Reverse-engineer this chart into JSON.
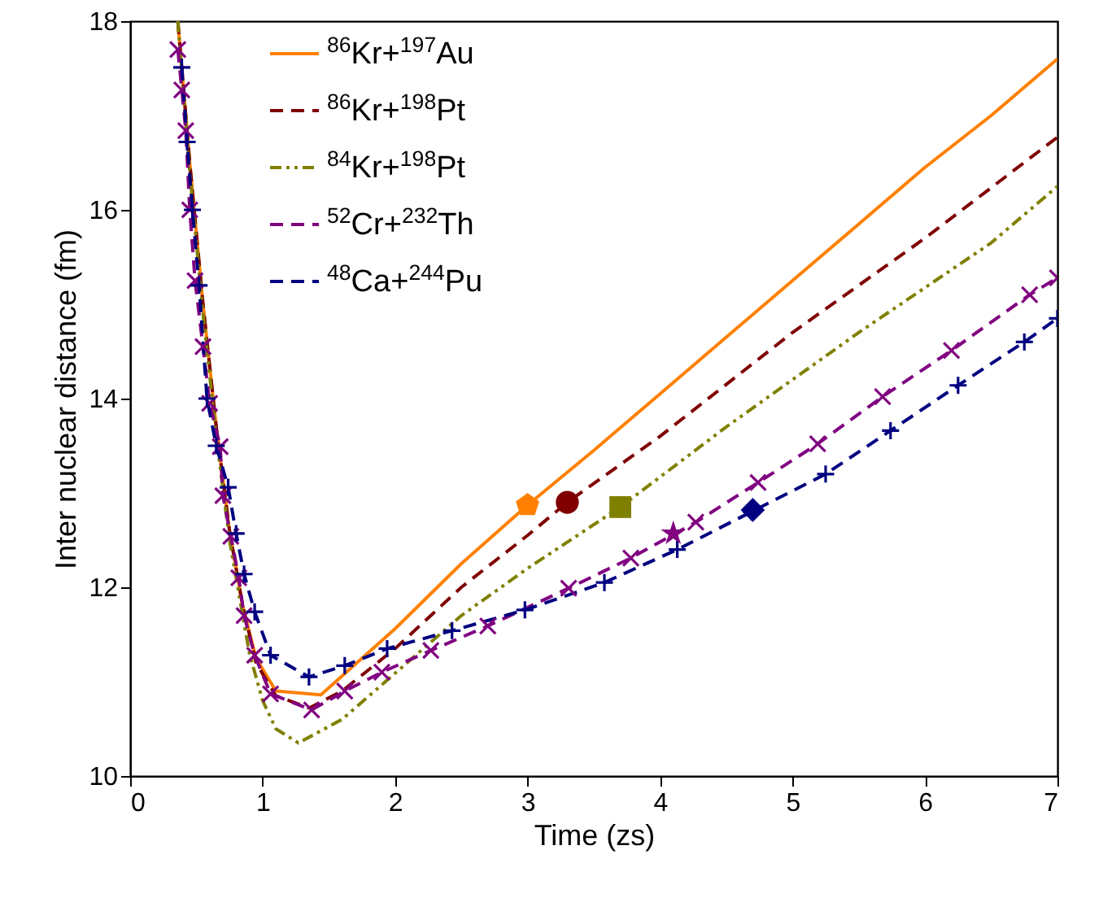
{
  "chart_data": {
    "type": "line",
    "xlabel": "Time (zs)",
    "ylabel": "Inter nuclear distance (fm)",
    "xlim": [
      0,
      7
    ],
    "xticks": [
      0,
      1,
      2,
      3,
      4,
      5,
      6,
      7
    ],
    "ylim": [
      10,
      18
    ],
    "yticks": [
      10,
      12,
      14,
      16,
      18
    ],
    "grid": false,
    "legend": "top",
    "series": [
      {
        "name": "$^{86}$Kr+$^{197}$Au",
        "color": "#ff8000",
        "line_style": "solid",
        "marker": "none",
        "x": [
          0.36,
          0.45,
          0.55,
          0.65,
          0.75,
          0.85,
          0.95,
          1.1,
          1.44,
          2,
          2.5,
          3,
          3.5,
          4,
          4.5,
          5,
          5.5,
          6,
          6.5,
          7
        ],
        "values": [
          18,
          16.5,
          15,
          13.7,
          12.6,
          11.8,
          11.25,
          10.9,
          10.86,
          11.56,
          12.25,
          12.87,
          13.45,
          14.05,
          14.65,
          15.25,
          15.85,
          16.45,
          17.0,
          17.6
        ]
      },
      {
        "name": "$^{86}$Kr+$^{198}$Pt",
        "color": "#800000",
        "line_style": "dashed",
        "marker": "none",
        "x": [
          0.36,
          0.45,
          0.55,
          0.65,
          0.75,
          0.85,
          0.95,
          1.1,
          1.35,
          1.6,
          2,
          2.5,
          3,
          3.3,
          4,
          5,
          6,
          7
        ],
        "values": [
          18,
          16.5,
          15,
          13.7,
          12.6,
          11.8,
          11.2,
          10.85,
          10.72,
          10.9,
          11.35,
          12.0,
          12.55,
          12.9,
          13.6,
          14.7,
          15.7,
          16.77
        ]
      },
      {
        "name": "$^{84}$Kr+$^{198}$Pt",
        "color": "#808000",
        "line_style": "dashdot",
        "marker": "none",
        "x": [
          0.36,
          0.45,
          0.55,
          0.65,
          0.75,
          0.9,
          1.0,
          1.1,
          1.27,
          1.6,
          1.96,
          2.5,
          3,
          3.7,
          4.5,
          5.5,
          6.5,
          7
        ],
        "values": [
          18,
          16.4,
          14.9,
          13.6,
          12.5,
          11.3,
          10.8,
          10.5,
          10.35,
          10.6,
          11.04,
          11.7,
          12.2,
          12.85,
          13.7,
          14.7,
          15.65,
          16.25
        ]
      },
      {
        "name": "$^{52}$Cr+$^{232}$Th",
        "color": "#800080",
        "line_style": "dashed",
        "marker": "x",
        "x": [
          0.36,
          0.39,
          0.42,
          0.45,
          0.49,
          0.55,
          0.6,
          0.68,
          0.7,
          0.76,
          0.82,
          0.86,
          0.94,
          1.06,
          1.37,
          1.62,
          1.9,
          2.27,
          2.7,
          3.31,
          3.78,
          4.27,
          4.74,
          5.19,
          5.68,
          6.2,
          6.79,
          7
        ],
        "values": [
          17.7,
          17.27,
          16.84,
          16.0,
          15.25,
          14.55,
          13.95,
          13.49,
          12.97,
          12.54,
          12.1,
          11.7,
          11.28,
          10.87,
          10.7,
          10.9,
          11.1,
          11.33,
          11.59,
          11.99,
          12.31,
          12.69,
          13.11,
          13.52,
          14.02,
          14.51,
          15.1,
          15.28
        ]
      },
      {
        "name": "$^{48}$Ca+$^{244}$Pu",
        "color": "#000080",
        "line_style": "dashed",
        "marker": "cross",
        "x": [
          0.39,
          0.43,
          0.47,
          0.52,
          0.58,
          0.65,
          0.74,
          0.8,
          0.86,
          0.94,
          1.06,
          1.35,
          1.62,
          1.94,
          2.43,
          2.98,
          3.58,
          4.13,
          4.69,
          5.25,
          5.74,
          6.25,
          6.75,
          7
        ],
        "values": [
          17.51,
          16.72,
          16.0,
          15.2,
          14.0,
          13.5,
          13.06,
          12.57,
          12.14,
          11.74,
          11.28,
          11.05,
          11.17,
          11.35,
          11.54,
          11.76,
          12.05,
          12.4,
          12.8,
          13.2,
          13.66,
          14.14,
          14.6,
          14.85
        ]
      },
      {
        "type": "scatter",
        "color": "#ff8000",
        "x": [
          3.0
        ],
        "values": [
          12.87
        ]
      },
      {
        "type": "scatter",
        "color": "#800000",
        "marker": "circle",
        "x": [
          3.3
        ],
        "values": [
          12.9
        ]
      },
      {
        "type": "scatter",
        "color": "#808000",
        "marker": "square",
        "x": [
          3.7
        ],
        "values": [
          12.85
        ]
      },
      {
        "type": "scatter",
        "color": "#800080",
        "marker": "star",
        "x": [
          4.1
        ],
        "values": [
          12.57
        ]
      },
      {
        "type": "scatter",
        "color": "#000080",
        "marker": "diamond",
        "x": [
          4.7
        ],
        "values": [
          12.82
        ]
      }
    ]
  }
}
